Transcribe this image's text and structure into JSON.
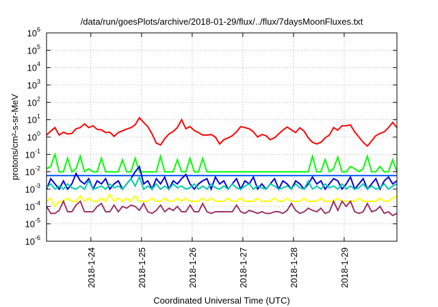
{
  "chart_data": {
    "type": "line",
    "title": "/data/run/goesPlots/archive/2018-01-29/flux/../flux/7daysMoonFluxes.txt",
    "xlabel": "Coordinated Universal Time (UTC)",
    "ylabel": "protons/cm²-s-sr-MeV",
    "yscale": "log",
    "ylim": [
      1e-06,
      1000000.0
    ],
    "xlim": [
      0,
      166
    ],
    "x_unit": "hours since 2018-01-23 03:00 UTC",
    "grid": true,
    "legend": "none",
    "y_ticks": [
      {
        "base": "10",
        "exp": "-6"
      },
      {
        "base": "10",
        "exp": "-5"
      },
      {
        "base": "10",
        "exp": "-4"
      },
      {
        "base": "10",
        "exp": "-3"
      },
      {
        "base": "10",
        "exp": "-2"
      },
      {
        "base": "10",
        "exp": "-1"
      },
      {
        "base": "10",
        "exp": "0"
      },
      {
        "base": "10",
        "exp": "1"
      },
      {
        "base": "10",
        "exp": "2"
      },
      {
        "base": "10",
        "exp": "3"
      },
      {
        "base": "10",
        "exp": "4"
      },
      {
        "base": "10",
        "exp": "5"
      },
      {
        "base": "10",
        "exp": "6"
      }
    ],
    "x_ticks": [
      {
        "label": "2018-1-24",
        "x": 21
      },
      {
        "label": "2018-1-25",
        "x": 45
      },
      {
        "label": "2018-1-26",
        "x": 69
      },
      {
        "label": "2018-1-27",
        "x": 93
      },
      {
        "label": "2018-1-28",
        "x": 117
      },
      {
        "label": "2018-1-29",
        "x": 141
      }
    ],
    "x": [
      0,
      2,
      4,
      6,
      8,
      10,
      12,
      14,
      16,
      18,
      20,
      22,
      24,
      26,
      28,
      30,
      32,
      34,
      36,
      38,
      40,
      42,
      44,
      46,
      48,
      50,
      52,
      54,
      56,
      58,
      60,
      62,
      64,
      66,
      68,
      70,
      72,
      74,
      76,
      78,
      80,
      82,
      84,
      86,
      88,
      90,
      92,
      94,
      96,
      98,
      100,
      102,
      104,
      106,
      108,
      110,
      112,
      114,
      116,
      118,
      120,
      122,
      124,
      126,
      128,
      130,
      132,
      134,
      136,
      138,
      140,
      142,
      144,
      146,
      148,
      150,
      152,
      154,
      156,
      158,
      160,
      162,
      164,
      166
    ],
    "series": [
      {
        "color": "#ff0000",
        "values": [
          1.3,
          2.2,
          3.5,
          1.3,
          1.9,
          1.5,
          1.6,
          3.0,
          3.5,
          5.8,
          3.5,
          4.5,
          2.8,
          2.6,
          1.8,
          1.9,
          1.1,
          1.8,
          2.3,
          2.9,
          3.5,
          5.0,
          13.0,
          7.0,
          4.0,
          1.5,
          0.45,
          0.35,
          0.8,
          1.5,
          2.1,
          3.5,
          10.0,
          3.0,
          4.0,
          2.4,
          1.8,
          1.3,
          1.3,
          1.4,
          1.0,
          0.4,
          0.7,
          0.9,
          1.2,
          2.0,
          4.0,
          3.5,
          3.0,
          2.0,
          1.0,
          1.4,
          1.2,
          0.7,
          0.9,
          1.5,
          2.5,
          3.8,
          2.6,
          1.8,
          3.4,
          2.2,
          0.9,
          0.5,
          0.4,
          0.5,
          0.9,
          1.3,
          3.5,
          2.5,
          4.5,
          4.5,
          5.0,
          2.0,
          1.0,
          0.5,
          0.3,
          0.6,
          1.2,
          1.6,
          2.0,
          3.5,
          7.0,
          3.5
        ]
      },
      {
        "color": "#00ff00",
        "values": [
          0.015,
          0.02,
          0.1,
          0.01,
          0.01,
          0.06,
          0.01,
          0.015,
          0.08,
          0.01,
          0.015,
          0.01,
          0.01,
          0.06,
          0.01,
          0.01,
          0.01,
          0.01,
          0.05,
          0.01,
          0.01,
          0.06,
          0.01,
          0.01,
          0.01,
          0.01,
          0.01,
          0.08,
          0.01,
          0.01,
          0.01,
          0.05,
          0.01,
          0.01,
          0.06,
          0.01,
          0.01,
          0.06,
          0.01,
          0.01,
          0.01,
          0.01,
          0.01,
          0.01,
          0.01,
          0.01,
          0.01,
          0.01,
          0.01,
          0.01,
          0.01,
          0.01,
          0.01,
          0.01,
          0.01,
          0.01,
          0.01,
          0.01,
          0.01,
          0.01,
          0.01,
          0.01,
          0.01,
          0.08,
          0.01,
          0.01,
          0.05,
          0.01,
          0.015,
          0.07,
          0.01,
          0.01,
          0.02,
          0.015,
          0.01,
          0.015,
          0.08,
          0.01,
          0.01,
          0.02,
          0.01,
          0.01,
          0.05,
          0.01
        ]
      },
      {
        "color": "#0055ff",
        "values": [
          0.006,
          0.006,
          0.006,
          0.006,
          0.006,
          0.006,
          0.006,
          0.006,
          0.006,
          0.006,
          0.006,
          0.006,
          0.006,
          0.006,
          0.006,
          0.006,
          0.006,
          0.006,
          0.006,
          0.006,
          0.006,
          0.006,
          0.006,
          0.006,
          0.006,
          0.006,
          0.006,
          0.006,
          0.006,
          0.006,
          0.006,
          0.006,
          0.006,
          0.006,
          0.006,
          0.006,
          0.006,
          0.006,
          0.006,
          0.006,
          0.006,
          0.006,
          0.006,
          0.006,
          0.006,
          0.006,
          0.006,
          0.006,
          0.006,
          0.006,
          0.006,
          0.006,
          0.006,
          0.006,
          0.006,
          0.006,
          0.006,
          0.006,
          0.006,
          0.006,
          0.006,
          0.006,
          0.006,
          0.006,
          0.006,
          0.006,
          0.006,
          0.006,
          0.006,
          0.006,
          0.006,
          0.006,
          0.006,
          0.006,
          0.006,
          0.006,
          0.006,
          0.006,
          0.006,
          0.006,
          0.006,
          0.006,
          0.006,
          0.006
        ]
      },
      {
        "color": "#0000dd",
        "values": [
          0.001,
          0.004,
          0.002,
          0.001,
          0.003,
          0.001,
          0.002,
          0.008,
          0.003,
          0.002,
          0.004,
          0.001,
          0.003,
          0.002,
          0.004,
          0.001,
          0.002,
          0.003,
          0.001,
          0.002,
          0.004,
          0.01,
          0.02,
          0.002,
          0.003,
          0.001,
          0.004,
          0.002,
          0.005,
          0.001,
          0.003,
          0.002,
          0.004,
          0.007,
          0.002,
          0.001,
          0.002,
          0.003,
          0.004,
          0.001,
          0.005,
          0.002,
          0.003,
          0.001,
          0.002,
          0.004,
          0.001,
          0.003,
          0.002,
          0.005,
          0.001,
          0.002,
          0.001,
          0.002,
          0.004,
          0.001,
          0.003,
          0.002,
          0.001,
          0.003,
          0.002,
          0.001,
          0.002,
          0.005,
          0.002,
          0.003,
          0.001,
          0.002,
          0.004,
          0.003,
          0.001,
          0.002,
          0.005,
          0.001,
          0.002,
          0.004,
          0.001,
          0.002,
          0.004,
          0.001,
          0.003,
          0.005,
          0.002,
          0.003
        ]
      },
      {
        "color": "#00ccaa",
        "values": [
          0.0012,
          0.002,
          0.001,
          0.0015,
          0.001,
          0.002,
          0.0012,
          0.001,
          0.0015,
          0.001,
          0.003,
          0.001,
          0.0012,
          0.0015,
          0.001,
          0.002,
          0.0012,
          0.0015,
          0.001,
          0.002,
          0.004,
          0.0015,
          0.005,
          0.001,
          0.0015,
          0.001,
          0.002,
          0.001,
          0.0015,
          0.001,
          0.002,
          0.0012,
          0.0015,
          0.001,
          0.0012,
          0.002,
          0.001,
          0.0015,
          0.001,
          0.002,
          0.0012,
          0.001,
          0.0015,
          0.001,
          0.002,
          0.0012,
          0.001,
          0.0015,
          0.002,
          0.001,
          0.0015,
          0.0012,
          0.001,
          0.002,
          0.0015,
          0.001,
          0.0012,
          0.0015,
          0.001,
          0.002,
          0.0012,
          0.001,
          0.003,
          0.001,
          0.0015,
          0.001,
          0.002,
          0.0012,
          0.0015,
          0.001,
          0.002,
          0.001,
          0.0015,
          0.001,
          0.0012,
          0.002,
          0.001,
          0.0015,
          0.001,
          0.0012,
          0.002,
          0.001,
          0.0015,
          0.002
        ]
      },
      {
        "color": "#ffff00",
        "values": [
          0.0002,
          0.0003,
          0.0001,
          0.0002,
          0.0002,
          0.0003,
          0.0002,
          0.0002,
          0.0004,
          0.0002,
          0.0003,
          0.0002,
          0.0002,
          0.0003,
          0.0002,
          0.0005,
          0.0002,
          0.0003,
          0.0002,
          0.0003,
          0.0002,
          0.0004,
          0.0002,
          0.0002,
          0.0002,
          0.0003,
          0.0002,
          0.0002,
          0.0003,
          0.0002,
          0.0002,
          0.0003,
          0.0002,
          0.0003,
          0.0002,
          0.0002,
          0.0002,
          0.0003,
          0.0002,
          0.0003,
          0.0002,
          0.0002,
          0.0002,
          0.0003,
          0.0002,
          0.0002,
          0.0003,
          0.0002,
          0.0002,
          0.0002,
          0.0003,
          0.0002,
          0.0002,
          0.0002,
          0.0003,
          0.0002,
          0.0002,
          0.0003,
          0.0002,
          0.0002,
          0.0002,
          0.0003,
          0.0002,
          0.0002,
          0.0002,
          0.0003,
          0.0002,
          0.0002,
          0.0002,
          0.0003,
          0.0002,
          0.0002,
          0.0002,
          0.0002,
          0.0003,
          0.0002,
          0.0002,
          0.0002,
          0.0002,
          0.0003,
          0.0002,
          0.0002,
          0.0003,
          0.0004
        ]
      },
      {
        "color": "#993366",
        "values": [
          0.0001,
          4e-05,
          4e-05,
          6e-05,
          0.0002,
          5e-05,
          5e-05,
          0.00012,
          0.0002,
          5e-05,
          5e-05,
          5e-05,
          0.0001,
          0.00015,
          5e-05,
          5e-05,
          0.00012,
          5e-05,
          0.0001,
          8e-05,
          0.00012,
          0.0001,
          6e-05,
          0.00015,
          5e-05,
          4e-05,
          6e-05,
          0.00012,
          5e-05,
          8e-05,
          6e-05,
          0.0001,
          5e-05,
          5e-05,
          0.00012,
          5e-05,
          5e-05,
          0.00015,
          5e-05,
          4e-05,
          5e-05,
          5e-05,
          5e-05,
          5e-05,
          5e-05,
          0.00012,
          5e-05,
          4e-05,
          6e-05,
          5e-05,
          4e-05,
          5e-05,
          4e-05,
          4e-05,
          5e-05,
          5e-05,
          4e-05,
          6e-05,
          0.00015,
          6e-05,
          4e-05,
          5e-05,
          8e-05,
          6e-05,
          5e-05,
          8e-05,
          4e-05,
          5e-05,
          0.0002,
          6e-05,
          0.0002,
          0.0001,
          0.0002,
          5e-05,
          4e-05,
          5e-05,
          0.00015,
          5e-05,
          6e-05,
          0.0001,
          4e-05,
          5e-05,
          3e-05,
          4e-05
        ]
      }
    ]
  }
}
